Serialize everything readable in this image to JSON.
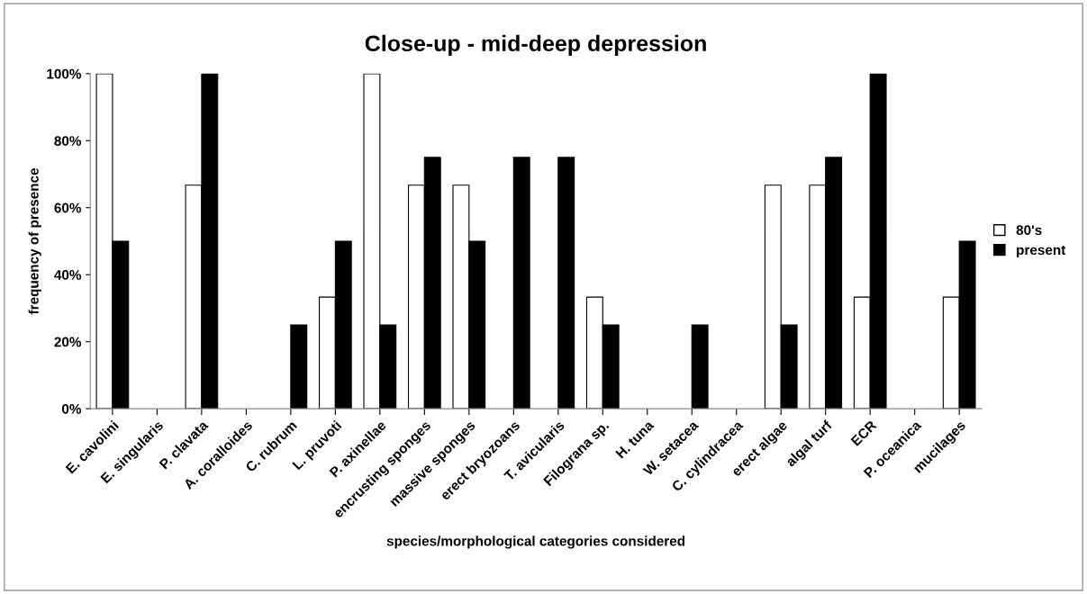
{
  "chart_data": {
    "type": "bar",
    "title": "Close-up - mid-deep depression",
    "xlabel": "species/morphological categories considered",
    "ylabel": "frequency of presence",
    "categories": [
      "E. cavolini",
      "E. singularis",
      "P. clavata",
      "A. coralloides",
      "C. rubrum",
      "L. pruvoti",
      "P. axinellae",
      "encrusting sponges",
      "massive sponges",
      "erect bryozoans",
      "T. avicularis",
      "Filograna sp.",
      "H. tuna",
      "W. setacea",
      "C. cylindracea",
      "erect algae",
      "algal turf",
      "ECR",
      "P. oceanica",
      "mucilages"
    ],
    "series": [
      {
        "name": "80's",
        "color": "#ffffff",
        "values": [
          100,
          0,
          66.7,
          0,
          0,
          33.3,
          100,
          66.7,
          66.7,
          0,
          0,
          33.3,
          0,
          0,
          0,
          66.7,
          66.7,
          33.3,
          0,
          33.3
        ]
      },
      {
        "name": "present",
        "color": "#000000",
        "values": [
          50,
          0,
          100,
          0,
          25,
          50,
          25,
          75,
          50,
          75,
          75,
          25,
          0,
          25,
          0,
          25,
          75,
          100,
          0,
          50
        ]
      }
    ],
    "ylim": [
      0,
      100
    ],
    "yticks": [
      {
        "value": 0,
        "label": "0%"
      },
      {
        "value": 20,
        "label": "20%"
      },
      {
        "value": 40,
        "label": "40%"
      },
      {
        "value": 60,
        "label": "60%"
      },
      {
        "value": 80,
        "label": "80%"
      },
      {
        "value": 100,
        "label": "100%"
      }
    ],
    "grid": false,
    "legend": "right"
  }
}
